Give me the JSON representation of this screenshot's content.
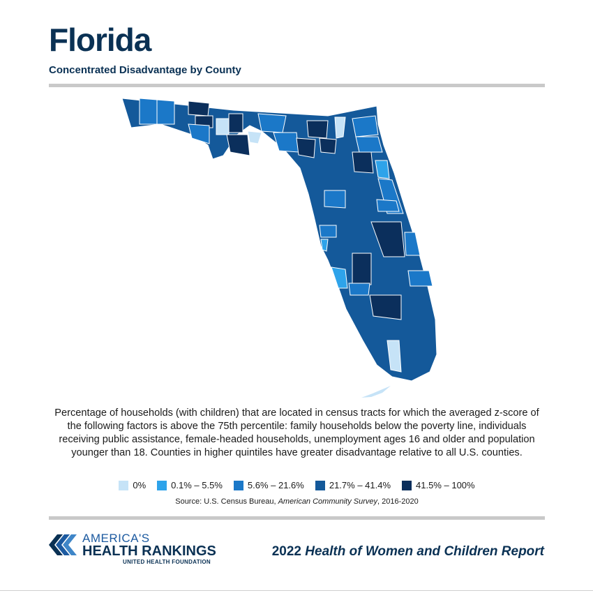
{
  "header": {
    "title": "Florida",
    "subtitle": "Concentrated Disadvantage by County"
  },
  "description": "Percentage of households (with children) that are located in census tracts for which the averaged z-score of the following factors is above the 75th percentile: family households below the poverty line, individuals receiving public assistance, female-headed households, unemployment ages 16 and older and population younger than 18. Counties in higher quintiles have greater disadvantage relative to all U.S. counties.",
  "legend": [
    {
      "label": "0%",
      "color": "#c6e3f7"
    },
    {
      "label": "0.1% – 5.5%",
      "color": "#2ea3ea"
    },
    {
      "label": "5.6% – 21.6%",
      "color": "#1b78c8"
    },
    {
      "label": "21.7% – 41.4%",
      "color": "#14599a"
    },
    {
      "label": "41.5% – 100%",
      "color": "#0b2f5c"
    }
  ],
  "source": {
    "prefix": "Source: U.S. Census Bureau, ",
    "italic": "American Community Survey",
    "suffix": ", 2016-2020"
  },
  "footer": {
    "logo_line1": "AMERICA'S",
    "logo_line2": "HEALTH RANKINGS",
    "logo_line3": "UNITED HEALTH FOUNDATION",
    "report_year": "2022",
    "report_title": "Health of Women and Children Report"
  },
  "colors": {
    "land_base": "#14599a",
    "border": "#ffffff"
  }
}
